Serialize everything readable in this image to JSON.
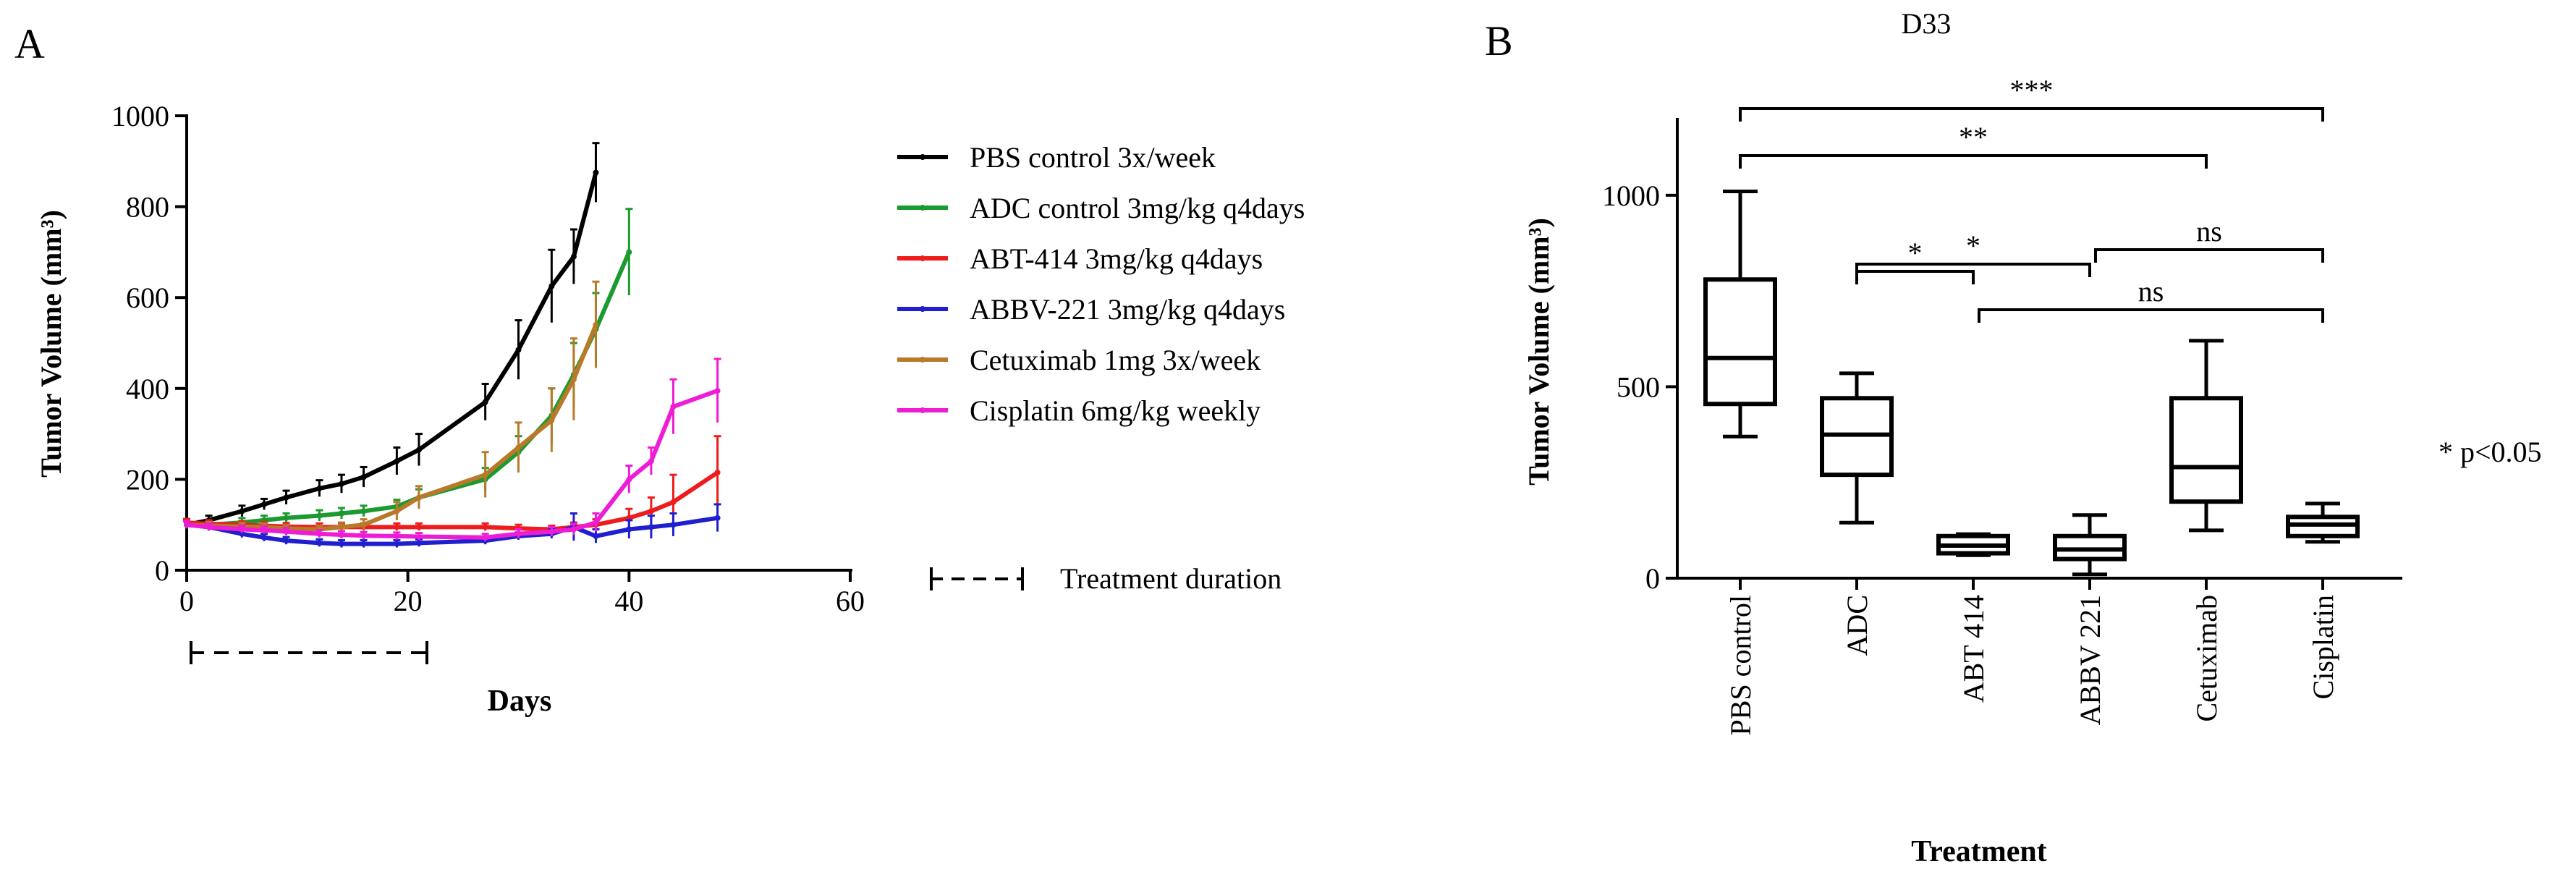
{
  "panel_a": {
    "label": "A",
    "chart_data": {
      "type": "line",
      "title": "",
      "xlabel": "Days",
      "ylabel": "Tumor Volume (mm³)",
      "xlim": [
        0,
        60
      ],
      "ylim": [
        0,
        1000
      ],
      "x_ticks": [
        "0",
        "20",
        "40",
        "60"
      ],
      "y_ticks": [
        "0",
        "200",
        "400",
        "600",
        "800",
        "1000"
      ],
      "series": [
        {
          "name": "PBS control 3x/week",
          "color": "#000000",
          "x": [
            0,
            2,
            5,
            7,
            9,
            12,
            14,
            16,
            19,
            21,
            27,
            30,
            33,
            35,
            37
          ],
          "y": [
            100,
            110,
            130,
            145,
            160,
            180,
            190,
            205,
            240,
            265,
            370,
            485,
            625,
            690,
            875
          ],
          "err": [
            8,
            10,
            12,
            12,
            15,
            18,
            20,
            22,
            30,
            35,
            40,
            65,
            80,
            60,
            65
          ]
        },
        {
          "name": "ADC control 3mg/kg q4days",
          "color": "#1a9a2f",
          "x": [
            0,
            2,
            5,
            7,
            9,
            12,
            14,
            16,
            19,
            21,
            27,
            30,
            33,
            35,
            37,
            40
          ],
          "y": [
            100,
            100,
            105,
            110,
            115,
            120,
            125,
            130,
            140,
            160,
            200,
            260,
            340,
            430,
            530,
            700
          ],
          "err": [
            8,
            8,
            10,
            10,
            10,
            12,
            12,
            12,
            15,
            18,
            25,
            35,
            60,
            70,
            80,
            95
          ]
        },
        {
          "name": "ABT-414 3mg/kg q4days",
          "color": "#ee1c1c",
          "x": [
            0,
            2,
            5,
            7,
            9,
            12,
            14,
            16,
            19,
            21,
            27,
            30,
            33,
            35,
            37,
            40,
            42,
            44,
            48
          ],
          "y": [
            105,
            102,
            100,
            98,
            96,
            95,
            95,
            95,
            95,
            95,
            95,
            92,
            90,
            95,
            100,
            115,
            130,
            150,
            215
          ],
          "err": [
            8,
            8,
            8,
            8,
            8,
            8,
            8,
            8,
            8,
            8,
            8,
            8,
            8,
            10,
            12,
            20,
            30,
            60,
            80
          ]
        },
        {
          "name": "ABBV-221 3mg/kg q4days",
          "color": "#1f1fcf",
          "x": [
            0,
            2,
            5,
            7,
            9,
            12,
            14,
            16,
            19,
            21,
            27,
            30,
            33,
            35,
            37,
            40,
            42,
            44,
            48
          ],
          "y": [
            100,
            95,
            80,
            72,
            65,
            60,
            58,
            58,
            58,
            60,
            65,
            75,
            80,
            95,
            75,
            90,
            95,
            100,
            115
          ],
          "err": [
            8,
            8,
            8,
            8,
            8,
            8,
            8,
            8,
            8,
            8,
            8,
            8,
            10,
            30,
            15,
            20,
            25,
            25,
            30
          ]
        },
        {
          "name": "Cetuximab 1mg 3x/week",
          "color": "#b87a2a",
          "x": [
            0,
            2,
            5,
            7,
            9,
            12,
            14,
            16,
            19,
            21,
            27,
            30,
            33,
            35,
            37
          ],
          "y": [
            100,
            98,
            96,
            95,
            92,
            90,
            95,
            100,
            130,
            160,
            210,
            270,
            330,
            420,
            540
          ],
          "err": [
            8,
            8,
            8,
            8,
            8,
            8,
            10,
            12,
            20,
            25,
            50,
            55,
            70,
            90,
            95
          ]
        },
        {
          "name": "Cisplatin 6mg/kg weekly",
          "color": "#ee1cd4",
          "x": [
            0,
            2,
            5,
            7,
            9,
            12,
            14,
            16,
            19,
            21,
            27,
            30,
            33,
            35,
            37,
            40,
            42,
            44,
            48
          ],
          "y": [
            100,
            95,
            90,
            88,
            85,
            80,
            78,
            76,
            75,
            74,
            72,
            80,
            85,
            90,
            105,
            200,
            240,
            360,
            395
          ],
          "err": [
            8,
            8,
            8,
            8,
            8,
            8,
            8,
            8,
            8,
            8,
            8,
            10,
            10,
            12,
            20,
            30,
            30,
            60,
            70
          ]
        }
      ],
      "annotation": "Treatment duration",
      "treatment_duration_days": [
        0,
        21
      ]
    }
  },
  "panel_b": {
    "label": "B",
    "chart_data": {
      "type": "box",
      "title": "D33",
      "xlabel": "Treatment",
      "ylabel": "Tumor Volume (mm³)",
      "ylim": [
        0,
        1200
      ],
      "y_ticks": [
        "0",
        "500",
        "1000"
      ],
      "categories": [
        "PBS control",
        "ADC",
        "ABT 414",
        "ABBV 221",
        "Cetuximab",
        "Cisplatin"
      ],
      "boxes": [
        {
          "min": 370,
          "q1": 455,
          "median": 575,
          "q3": 780,
          "max": 1010
        },
        {
          "min": 145,
          "q1": 270,
          "median": 375,
          "q3": 470,
          "max": 535
        },
        {
          "min": 60,
          "q1": 65,
          "median": 85,
          "q3": 110,
          "max": 115
        },
        {
          "min": 10,
          "q1": 50,
          "median": 75,
          "q3": 110,
          "max": 165
        },
        {
          "min": 125,
          "q1": 200,
          "median": 290,
          "q3": 470,
          "max": 620
        },
        {
          "min": 95,
          "q1": 110,
          "median": 140,
          "q3": 160,
          "max": 195
        }
      ],
      "significance": [
        {
          "from": 0,
          "to": 5,
          "label": "***"
        },
        {
          "from": 0,
          "to": 4,
          "label": "**"
        },
        {
          "from": 1,
          "to": 3,
          "label": "*"
        },
        {
          "from": 3,
          "to": 5,
          "label": "ns"
        },
        {
          "from": 1,
          "to": 2,
          "label": "*"
        },
        {
          "from": 2,
          "to": 5,
          "label": "ns"
        }
      ],
      "footnote": "* p<0.05"
    }
  }
}
